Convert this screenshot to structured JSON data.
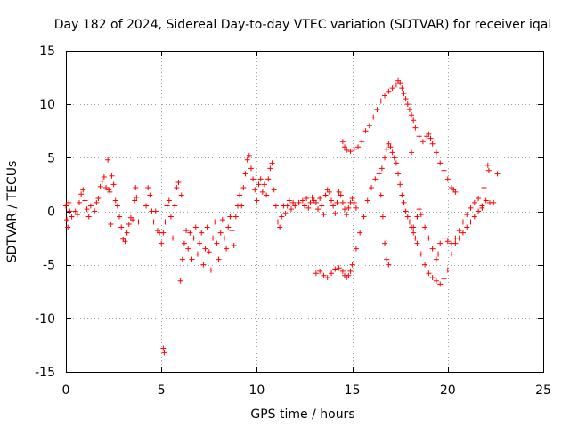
{
  "chart_data": {
    "type": "scatter",
    "title": "Day 182 of 2024, Sidereal Day-to-day VTEC variation (SDTVAR) for receiver iqal",
    "xlabel": "GPS time / hours",
    "ylabel": "SDTVAR / TECUs",
    "xlim": [
      0,
      25
    ],
    "ylim": [
      -15,
      15
    ],
    "xticks": [
      0,
      5,
      10,
      15,
      20,
      25
    ],
    "yticks": [
      -15,
      -10,
      -5,
      0,
      5,
      10,
      15
    ],
    "xtick_labels": [
      "0",
      "5",
      "10",
      "15",
      "20",
      "25"
    ],
    "ytick_labels": [
      "-15",
      "-10",
      "-5",
      "0",
      "5",
      "10",
      "15"
    ],
    "grid": true,
    "legend": "none",
    "marker": "plus",
    "color": "#ff0000",
    "series": [
      {
        "name": "SDTVAR",
        "points": [
          [
            0.0,
            0.5
          ],
          [
            0.05,
            -0.8
          ],
          [
            0.1,
            -1.5
          ],
          [
            0.15,
            0.8
          ],
          [
            0.2,
            0.0
          ],
          [
            0.3,
            -0.5
          ],
          [
            0.5,
            0.0
          ],
          [
            0.6,
            -0.3
          ],
          [
            0.7,
            0.8
          ],
          [
            0.8,
            1.6
          ],
          [
            0.9,
            2.0
          ],
          [
            1.0,
            1.0
          ],
          [
            1.1,
            0.2
          ],
          [
            1.2,
            -0.5
          ],
          [
            1.3,
            0.5
          ],
          [
            1.5,
            0.0
          ],
          [
            1.6,
            0.8
          ],
          [
            1.7,
            1.2
          ],
          [
            1.8,
            2.3
          ],
          [
            1.9,
            2.8
          ],
          [
            2.0,
            3.2
          ],
          [
            2.1,
            2.2
          ],
          [
            2.2,
            4.8
          ],
          [
            2.25,
            2.0
          ],
          [
            2.3,
            1.8
          ],
          [
            2.35,
            -1.2
          ],
          [
            2.4,
            3.3
          ],
          [
            2.5,
            2.5
          ],
          [
            2.6,
            1.0
          ],
          [
            2.7,
            0.5
          ],
          [
            2.8,
            -0.5
          ],
          [
            2.9,
            -1.5
          ],
          [
            3.0,
            -2.6
          ],
          [
            3.1,
            -2.8
          ],
          [
            3.2,
            -2.0
          ],
          [
            3.3,
            -1.2
          ],
          [
            3.4,
            -0.6
          ],
          [
            3.5,
            -0.8
          ],
          [
            3.6,
            1.0
          ],
          [
            3.65,
            2.2
          ],
          [
            3.7,
            1.3
          ],
          [
            3.8,
            -1.0
          ],
          [
            4.2,
            0.5
          ],
          [
            4.3,
            2.2
          ],
          [
            4.4,
            1.5
          ],
          [
            4.5,
            0.0
          ],
          [
            4.6,
            -1.0
          ],
          [
            4.7,
            0.0
          ],
          [
            4.8,
            -1.8
          ],
          [
            4.9,
            -2.0
          ],
          [
            5.0,
            -3.0
          ],
          [
            5.1,
            -2.0
          ],
          [
            5.2,
            -1.0
          ],
          [
            5.3,
            0.5
          ],
          [
            5.4,
            1.0
          ],
          [
            5.5,
            -0.5
          ],
          [
            5.6,
            -2.5
          ],
          [
            5.7,
            0.5
          ],
          [
            5.8,
            2.2
          ],
          [
            5.9,
            2.7
          ],
          [
            6.0,
            -6.5
          ],
          [
            6.05,
            1.5
          ],
          [
            6.1,
            -4.5
          ],
          [
            6.2,
            -3.0
          ],
          [
            6.3,
            -1.8
          ],
          [
            6.4,
            -3.5
          ],
          [
            6.5,
            -2.0
          ],
          [
            6.6,
            -4.5
          ],
          [
            6.7,
            -2.5
          ],
          [
            6.8,
            -1.5
          ],
          [
            6.9,
            -4.0
          ],
          [
            7.0,
            -3.0
          ],
          [
            7.1,
            -2.0
          ],
          [
            7.2,
            -5.0
          ],
          [
            7.3,
            -3.5
          ],
          [
            7.4,
            -1.5
          ],
          [
            7.5,
            -3.8
          ],
          [
            7.6,
            -5.5
          ],
          [
            7.7,
            -2.5
          ],
          [
            7.8,
            -1.0
          ],
          [
            7.9,
            -3.0
          ],
          [
            8.0,
            -4.5
          ],
          [
            8.1,
            -2.0
          ],
          [
            8.2,
            -0.8
          ],
          [
            8.3,
            -2.5
          ],
          [
            8.4,
            -3.5
          ],
          [
            8.5,
            -1.5
          ],
          [
            8.6,
            -0.5
          ],
          [
            8.7,
            -1.8
          ],
          [
            8.8,
            -3.2
          ],
          [
            8.9,
            -0.5
          ],
          [
            9.0,
            0.5
          ],
          [
            9.1,
            1.5
          ],
          [
            9.2,
            0.5
          ],
          [
            9.3,
            2.2
          ],
          [
            9.4,
            3.5
          ],
          [
            9.5,
            4.8
          ],
          [
            9.6,
            5.2
          ],
          [
            9.7,
            4.0
          ],
          [
            9.8,
            3.0
          ],
          [
            9.9,
            2.0
          ],
          [
            10.0,
            1.0
          ],
          [
            10.1,
            2.5
          ],
          [
            10.2,
            3.0
          ],
          [
            10.3,
            1.8
          ],
          [
            10.4,
            2.5
          ],
          [
            10.5,
            1.5
          ],
          [
            10.6,
            3.0
          ],
          [
            10.7,
            4.0
          ],
          [
            10.8,
            4.5
          ],
          [
            10.9,
            2.0
          ],
          [
            11.0,
            0.5
          ],
          [
            11.1,
            -1.0
          ],
          [
            11.2,
            -1.5
          ],
          [
            11.3,
            -0.5
          ],
          [
            11.4,
            0.5
          ],
          [
            11.5,
            -0.2
          ],
          [
            11.6,
            0.5
          ],
          [
            11.7,
            1.0
          ],
          [
            11.8,
            0.2
          ],
          [
            11.9,
            0.8
          ],
          [
            12.0,
            0.5
          ],
          [
            12.2,
            0.8
          ],
          [
            12.4,
            1.0
          ],
          [
            12.5,
            0.5
          ],
          [
            12.6,
            1.2
          ],
          [
            12.7,
            0.3
          ],
          [
            12.8,
            0.8
          ],
          [
            12.9,
            1.3
          ],
          [
            13.0,
            1.0
          ],
          [
            13.1,
            0.8
          ],
          [
            13.2,
            0.2
          ],
          [
            13.3,
            1.2
          ],
          [
            13.4,
            0.5
          ],
          [
            13.5,
            -0.3
          ],
          [
            13.6,
            1.5
          ],
          [
            13.7,
            2.0
          ],
          [
            13.8,
            1.8
          ],
          [
            13.9,
            1.0
          ],
          [
            14.0,
            0.5
          ],
          [
            14.1,
            -0.2
          ],
          [
            14.2,
            0.8
          ],
          [
            14.3,
            1.8
          ],
          [
            14.4,
            1.5
          ],
          [
            14.5,
            0.8
          ],
          [
            14.6,
            0.2
          ],
          [
            14.7,
            -0.3
          ],
          [
            14.8,
            0.3
          ],
          [
            14.9,
            0.8
          ],
          [
            15.0,
            1.2
          ],
          [
            15.1,
            0.8
          ],
          [
            15.2,
            0.3
          ],
          [
            13.1,
            -5.8
          ],
          [
            13.3,
            -5.6
          ],
          [
            13.5,
            -6.0
          ],
          [
            13.7,
            -6.2
          ],
          [
            13.9,
            -5.8
          ],
          [
            14.1,
            -5.4
          ],
          [
            14.3,
            -5.3
          ],
          [
            14.5,
            -5.6
          ],
          [
            14.6,
            -6.0
          ],
          [
            14.7,
            -6.2
          ],
          [
            14.8,
            -6.0
          ],
          [
            14.9,
            -5.6
          ],
          [
            15.0,
            -5.0
          ],
          [
            15.2,
            -3.5
          ],
          [
            15.4,
            -2.0
          ],
          [
            15.6,
            -0.5
          ],
          [
            15.8,
            1.0
          ],
          [
            16.0,
            2.2
          ],
          [
            16.2,
            3.0
          ],
          [
            16.4,
            3.5
          ],
          [
            16.5,
            1.5
          ],
          [
            16.6,
            -0.5
          ],
          [
            16.7,
            -3.0
          ],
          [
            16.8,
            -4.5
          ],
          [
            16.9,
            -5.0
          ],
          [
            16.55,
            4.0
          ],
          [
            16.7,
            5.0
          ],
          [
            16.8,
            5.8
          ],
          [
            16.9,
            6.3
          ],
          [
            17.0,
            6.0
          ],
          [
            17.1,
            5.5
          ],
          [
            17.2,
            5.0
          ],
          [
            17.3,
            4.5
          ],
          [
            17.4,
            3.5
          ],
          [
            17.5,
            2.5
          ],
          [
            17.6,
            1.5
          ],
          [
            17.7,
            0.8
          ],
          [
            17.8,
            0.0
          ],
          [
            17.9,
            -0.5
          ],
          [
            18.0,
            -1.0
          ],
          [
            18.1,
            -1.5
          ],
          [
            18.2,
            -2.0
          ],
          [
            18.3,
            -2.5
          ],
          [
            18.4,
            -3.0
          ],
          [
            18.6,
            -4.0
          ],
          [
            18.8,
            -5.0
          ],
          [
            19.0,
            -5.8
          ],
          [
            19.2,
            -6.2
          ],
          [
            19.4,
            -6.5
          ],
          [
            19.6,
            -6.8
          ],
          [
            19.8,
            -6.3
          ],
          [
            20.0,
            -5.5
          ],
          [
            20.2,
            -4.0
          ],
          [
            20.4,
            -3.0
          ],
          [
            20.6,
            -2.5
          ],
          [
            20.8,
            -2.0
          ],
          [
            21.0,
            -1.5
          ],
          [
            21.2,
            -1.0
          ],
          [
            21.4,
            -0.5
          ],
          [
            21.6,
            0.0
          ],
          [
            21.8,
            0.5
          ],
          [
            22.0,
            1.0
          ],
          [
            22.2,
            0.8
          ],
          [
            21.9,
            2.2
          ],
          [
            22.4,
            0.8
          ],
          [
            18.2,
            -1.5
          ],
          [
            18.4,
            -0.5
          ],
          [
            18.5,
            0.2
          ],
          [
            18.6,
            -0.3
          ],
          [
            18.8,
            -1.5
          ],
          [
            19.0,
            -2.5
          ],
          [
            19.2,
            -3.5
          ],
          [
            19.4,
            -4.5
          ],
          [
            19.5,
            -4.0
          ],
          [
            19.6,
            -3.0
          ],
          [
            19.8,
            -2.5
          ],
          [
            20.0,
            -2.8
          ],
          [
            20.2,
            -3.0
          ],
          [
            20.4,
            -2.5
          ],
          [
            20.6,
            -1.8
          ],
          [
            20.8,
            -1.0
          ],
          [
            21.0,
            -0.3
          ],
          [
            21.2,
            0.3
          ],
          [
            21.4,
            0.8
          ],
          [
            21.6,
            1.2
          ],
          [
            21.8,
            0.3
          ],
          [
            14.5,
            6.5
          ],
          [
            14.6,
            6.0
          ],
          [
            14.7,
            5.7
          ],
          [
            14.9,
            5.6
          ],
          [
            15.1,
            5.8
          ],
          [
            15.3,
            6.0
          ],
          [
            15.5,
            6.5
          ],
          [
            15.7,
            7.5
          ],
          [
            15.9,
            8.0
          ],
          [
            16.1,
            8.8
          ],
          [
            16.3,
            9.5
          ],
          [
            16.5,
            10.3
          ],
          [
            16.7,
            10.8
          ],
          [
            16.9,
            11.2
          ],
          [
            17.1,
            11.5
          ],
          [
            17.3,
            11.8
          ],
          [
            17.4,
            12.2
          ],
          [
            17.5,
            12.0
          ],
          [
            17.6,
            11.5
          ],
          [
            17.7,
            11.0
          ],
          [
            17.8,
            10.5
          ],
          [
            17.9,
            10.0
          ],
          [
            18.0,
            9.5
          ],
          [
            18.1,
            9.0
          ],
          [
            18.2,
            8.5
          ],
          [
            18.3,
            7.8
          ],
          [
            18.5,
            7.0
          ],
          [
            18.7,
            6.5
          ],
          [
            18.9,
            7.0
          ],
          [
            19.0,
            7.2
          ],
          [
            19.1,
            6.8
          ],
          [
            19.2,
            6.3
          ],
          [
            19.4,
            5.5
          ],
          [
            19.6,
            4.5
          ],
          [
            19.8,
            3.8
          ],
          [
            20.0,
            3.0
          ],
          [
            20.2,
            2.2
          ],
          [
            20.3,
            2.0
          ],
          [
            20.4,
            1.8
          ],
          [
            18.1,
            5.5
          ],
          [
            5.1,
            -12.8
          ],
          [
            5.15,
            -13.2
          ],
          [
            22.1,
            4.3
          ],
          [
            22.15,
            3.8
          ],
          [
            22.6,
            3.5
          ]
        ]
      }
    ]
  }
}
